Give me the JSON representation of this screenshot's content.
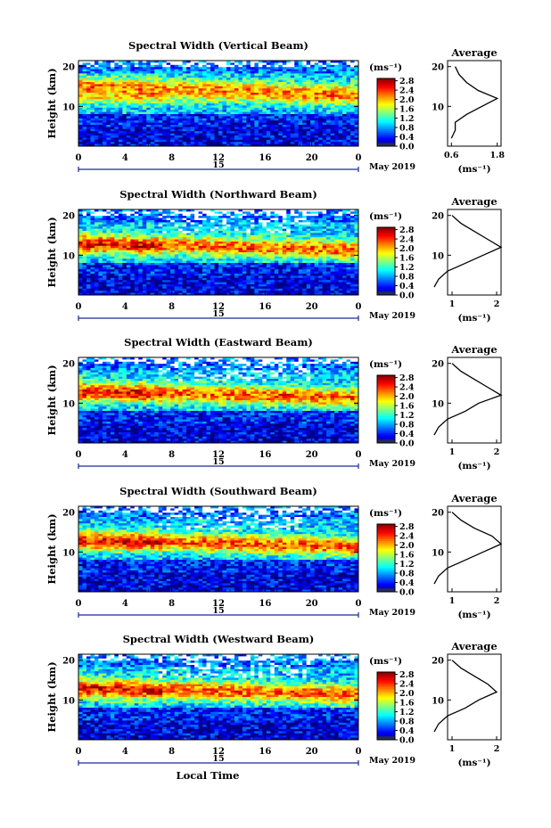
{
  "chart_data": [
    {
      "type": "heatmap",
      "title": "Spectral Width (Vertical Beam)",
      "xlabel": "",
      "ylabel": "Height (km)",
      "x_ticks": [
        "0",
        "4",
        "8",
        "12",
        "16",
        "20",
        "0"
      ],
      "y_ticks": [
        "10",
        "20"
      ],
      "date_label": "15",
      "date_suffix": "May 2019",
      "colorbar_title": "(ms⁻¹)",
      "colorbar_ticks": [
        "0.0",
        "0.4",
        "0.8",
        "1.2",
        "1.6",
        "2.0",
        "2.4",
        "2.8"
      ],
      "avg_title": "Average",
      "avg_x_ticks": [
        "0.6",
        "1.8"
      ],
      "avg_y_ticks": [
        "10",
        "20"
      ],
      "avg_xlabel": "(ms⁻¹)",
      "average_profile": {
        "height_km": [
          2,
          4,
          6,
          8,
          10,
          12,
          14,
          16,
          18,
          20
        ],
        "width_ms": [
          0.6,
          0.7,
          0.7,
          1.0,
          1.4,
          1.8,
          1.3,
          1.0,
          0.8,
          0.7
        ]
      }
    },
    {
      "type": "heatmap",
      "title": "Spectral Width (Northward Beam)",
      "xlabel": "",
      "ylabel": "Height (km)",
      "x_ticks": [
        "0",
        "4",
        "8",
        "12",
        "16",
        "20",
        "0"
      ],
      "y_ticks": [
        "10",
        "20"
      ],
      "date_label": "15",
      "date_suffix": "May 2019",
      "colorbar_title": "(ms⁻¹)",
      "colorbar_ticks": [
        "0.0",
        "0.4",
        "0.8",
        "1.2",
        "1.6",
        "2.0",
        "2.4",
        "2.8"
      ],
      "avg_title": "Average",
      "avg_x_ticks": [
        "1",
        "2"
      ],
      "avg_y_ticks": [
        "10",
        "20"
      ],
      "avg_xlabel": "(ms⁻¹)",
      "average_profile": {
        "height_km": [
          2,
          4,
          6,
          8,
          10,
          12,
          14,
          16,
          18,
          20
        ],
        "width_ms": [
          0.6,
          0.7,
          0.9,
          1.3,
          1.7,
          2.1,
          1.8,
          1.5,
          1.2,
          1.0
        ]
      }
    },
    {
      "type": "heatmap",
      "title": "Spectral Width (Eastward Beam)",
      "xlabel": "",
      "ylabel": "Height (km)",
      "x_ticks": [
        "0",
        "4",
        "8",
        "12",
        "16",
        "20",
        "0"
      ],
      "y_ticks": [
        "10",
        "20"
      ],
      "date_label": "15",
      "date_suffix": "May 2019",
      "colorbar_title": "(ms⁻¹)",
      "colorbar_ticks": [
        "0.0",
        "0.4",
        "0.8",
        "1.2",
        "1.6",
        "2.0",
        "2.4",
        "2.8"
      ],
      "avg_title": "Average",
      "avg_x_ticks": [
        "1",
        "2"
      ],
      "avg_y_ticks": [
        "10",
        "20"
      ],
      "avg_xlabel": "(ms⁻¹)",
      "average_profile": {
        "height_km": [
          2,
          4,
          6,
          8,
          10,
          12,
          14,
          16,
          18,
          20
        ],
        "width_ms": [
          0.6,
          0.7,
          0.9,
          1.3,
          1.6,
          2.1,
          1.8,
          1.5,
          1.2,
          1.0
        ]
      }
    },
    {
      "type": "heatmap",
      "title": "Spectral Width (Southward Beam)",
      "xlabel": "",
      "ylabel": "Height (km)",
      "x_ticks": [
        "0",
        "4",
        "8",
        "12",
        "16",
        "20",
        "0"
      ],
      "y_ticks": [
        "10",
        "20"
      ],
      "date_label": "15",
      "date_suffix": "May 2019",
      "colorbar_title": "(ms⁻¹)",
      "colorbar_ticks": [
        "0.0",
        "0.4",
        "0.8",
        "1.2",
        "1.6",
        "2.0",
        "2.4",
        "2.8"
      ],
      "avg_title": "Average",
      "avg_x_ticks": [
        "1",
        "2"
      ],
      "avg_y_ticks": [
        "10",
        "20"
      ],
      "avg_xlabel": "(ms⁻¹)",
      "average_profile": {
        "height_km": [
          2,
          4,
          6,
          8,
          10,
          12,
          14,
          16,
          18,
          20
        ],
        "width_ms": [
          0.6,
          0.7,
          0.9,
          1.3,
          1.7,
          2.1,
          1.9,
          1.5,
          1.2,
          1.0
        ]
      }
    },
    {
      "type": "heatmap",
      "title": "Spectral Width (Westward Beam)",
      "xlabel": "Local Time",
      "ylabel": "Height (km)",
      "x_ticks": [
        "0",
        "4",
        "8",
        "12",
        "16",
        "20",
        "0"
      ],
      "y_ticks": [
        "10",
        "20"
      ],
      "date_label": "15",
      "date_suffix": "May 2019",
      "colorbar_title": "(ms⁻¹)",
      "colorbar_ticks": [
        "0.0",
        "0.4",
        "0.8",
        "1.2",
        "1.6",
        "2.0",
        "2.4",
        "2.8"
      ],
      "avg_title": "Average",
      "avg_x_ticks": [
        "1",
        "2"
      ],
      "avg_y_ticks": [
        "10",
        "20"
      ],
      "avg_xlabel": "(ms⁻¹)",
      "average_profile": {
        "height_km": [
          2,
          4,
          6,
          8,
          10,
          12,
          14,
          16,
          18,
          20
        ],
        "width_ms": [
          0.6,
          0.7,
          0.9,
          1.3,
          1.6,
          2.0,
          1.8,
          1.5,
          1.2,
          1.0
        ]
      }
    }
  ]
}
